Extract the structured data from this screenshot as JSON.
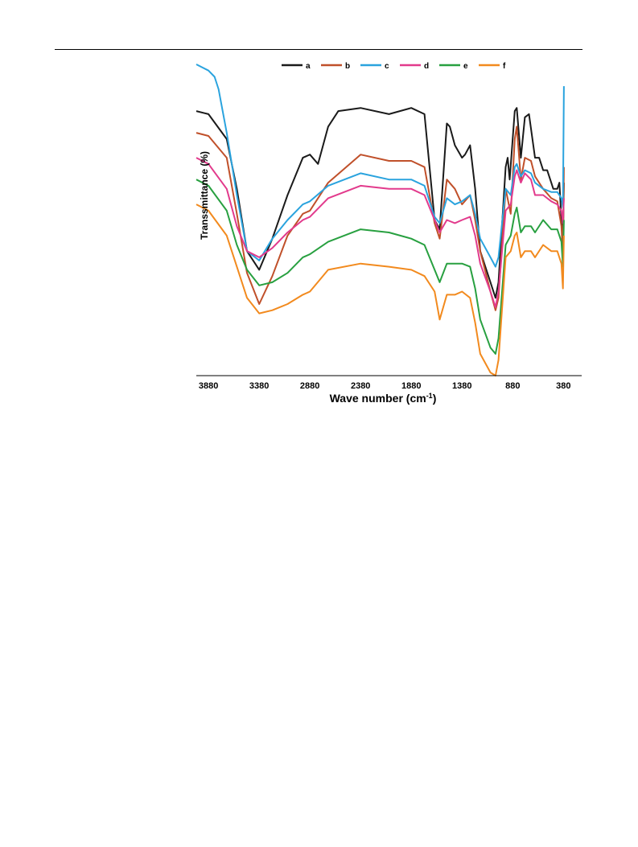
{
  "chart_data": {
    "type": "line",
    "title": "",
    "xlabel": "Wave number (cm⁻¹)",
    "ylabel": "Transsmittance (%)",
    "x_reversed": true,
    "xlim": [
      4000,
      200
    ],
    "ylim": [
      0,
      100
    ],
    "xticks": [
      3880,
      3380,
      2880,
      2380,
      1880,
      1380,
      880,
      380
    ],
    "xtick_labels": [
      "3880",
      "3380",
      "2880",
      "2380",
      "1880",
      "1380",
      "880",
      "380"
    ],
    "grid": false,
    "legend": "top",
    "series": [
      {
        "name": "a",
        "color": "#1a1a1a",
        "points": [
          [
            4000,
            85
          ],
          [
            3880,
            84
          ],
          [
            3700,
            76
          ],
          [
            3600,
            60
          ],
          [
            3500,
            40
          ],
          [
            3380,
            34
          ],
          [
            3250,
            44
          ],
          [
            3100,
            58
          ],
          [
            2950,
            70
          ],
          [
            2880,
            71
          ],
          [
            2800,
            68
          ],
          [
            2700,
            80
          ],
          [
            2600,
            85
          ],
          [
            2380,
            86
          ],
          [
            2100,
            84
          ],
          [
            1880,
            86
          ],
          [
            1750,
            84
          ],
          [
            1650,
            50
          ],
          [
            1600,
            47
          ],
          [
            1530,
            81
          ],
          [
            1500,
            80
          ],
          [
            1450,
            74
          ],
          [
            1380,
            70
          ],
          [
            1350,
            71
          ],
          [
            1300,
            74
          ],
          [
            1250,
            60
          ],
          [
            1200,
            40
          ],
          [
            1100,
            30
          ],
          [
            1050,
            25
          ],
          [
            1020,
            30
          ],
          [
            950,
            67
          ],
          [
            930,
            70
          ],
          [
            910,
            63
          ],
          [
            860,
            85
          ],
          [
            840,
            86
          ],
          [
            800,
            70
          ],
          [
            760,
            83
          ],
          [
            720,
            84
          ],
          [
            660,
            70
          ],
          [
            620,
            70
          ],
          [
            580,
            66
          ],
          [
            540,
            66
          ],
          [
            500,
            62
          ],
          [
            480,
            60
          ],
          [
            440,
            60
          ],
          [
            420,
            62
          ],
          [
            400,
            50
          ],
          [
            385,
            42
          ],
          [
            375,
            62
          ]
        ]
      },
      {
        "name": "b",
        "color": "#c0502a",
        "points": [
          [
            4000,
            78
          ],
          [
            3880,
            77
          ],
          [
            3700,
            70
          ],
          [
            3600,
            52
          ],
          [
            3500,
            33
          ],
          [
            3380,
            23
          ],
          [
            3250,
            32
          ],
          [
            3100,
            45
          ],
          [
            2950,
            52
          ],
          [
            2880,
            53
          ],
          [
            2700,
            62
          ],
          [
            2380,
            71
          ],
          [
            2100,
            69
          ],
          [
            1880,
            69
          ],
          [
            1750,
            67
          ],
          [
            1650,
            49
          ],
          [
            1600,
            44
          ],
          [
            1530,
            63
          ],
          [
            1450,
            60
          ],
          [
            1380,
            55
          ],
          [
            1300,
            58
          ],
          [
            1250,
            50
          ],
          [
            1200,
            40
          ],
          [
            1100,
            27
          ],
          [
            1050,
            21
          ],
          [
            1020,
            25
          ],
          [
            950,
            60
          ],
          [
            900,
            52
          ],
          [
            860,
            76
          ],
          [
            840,
            80
          ],
          [
            800,
            63
          ],
          [
            760,
            70
          ],
          [
            700,
            69
          ],
          [
            660,
            64
          ],
          [
            580,
            60
          ],
          [
            500,
            57
          ],
          [
            440,
            56
          ],
          [
            400,
            48
          ],
          [
            385,
            38
          ],
          [
            375,
            67
          ]
        ]
      },
      {
        "name": "c",
        "color": "#2aa3de",
        "points": [
          [
            4000,
            100
          ],
          [
            3880,
            98
          ],
          [
            3820,
            96
          ],
          [
            3780,
            92
          ],
          [
            3700,
            78
          ],
          [
            3600,
            58
          ],
          [
            3500,
            40
          ],
          [
            3380,
            37
          ],
          [
            3250,
            44
          ],
          [
            3100,
            50
          ],
          [
            2950,
            55
          ],
          [
            2880,
            56
          ],
          [
            2700,
            61
          ],
          [
            2380,
            65
          ],
          [
            2100,
            63
          ],
          [
            1880,
            63
          ],
          [
            1750,
            61
          ],
          [
            1650,
            51
          ],
          [
            1600,
            49
          ],
          [
            1530,
            57
          ],
          [
            1450,
            55
          ],
          [
            1380,
            56
          ],
          [
            1300,
            58
          ],
          [
            1250,
            52
          ],
          [
            1200,
            44
          ],
          [
            1100,
            38
          ],
          [
            1050,
            35
          ],
          [
            1020,
            38
          ],
          [
            950,
            60
          ],
          [
            900,
            58
          ],
          [
            860,
            67
          ],
          [
            840,
            68
          ],
          [
            800,
            64
          ],
          [
            760,
            66
          ],
          [
            700,
            65
          ],
          [
            660,
            62
          ],
          [
            580,
            60
          ],
          [
            500,
            59
          ],
          [
            440,
            59
          ],
          [
            400,
            57
          ],
          [
            385,
            54
          ],
          [
            375,
            93
          ]
        ]
      },
      {
        "name": "d",
        "color": "#e23a8c",
        "points": [
          [
            4000,
            70
          ],
          [
            3880,
            68
          ],
          [
            3700,
            60
          ],
          [
            3600,
            48
          ],
          [
            3500,
            40
          ],
          [
            3380,
            38
          ],
          [
            3250,
            41
          ],
          [
            3100,
            46
          ],
          [
            2950,
            50
          ],
          [
            2880,
            51
          ],
          [
            2700,
            57
          ],
          [
            2380,
            61
          ],
          [
            2100,
            60
          ],
          [
            1880,
            60
          ],
          [
            1750,
            58
          ],
          [
            1650,
            50
          ],
          [
            1600,
            46
          ],
          [
            1530,
            50
          ],
          [
            1450,
            49
          ],
          [
            1380,
            50
          ],
          [
            1300,
            51
          ],
          [
            1250,
            45
          ],
          [
            1200,
            36
          ],
          [
            1100,
            27
          ],
          [
            1050,
            22
          ],
          [
            1020,
            27
          ],
          [
            950,
            53
          ],
          [
            900,
            55
          ],
          [
            860,
            64
          ],
          [
            840,
            66
          ],
          [
            800,
            62
          ],
          [
            760,
            65
          ],
          [
            700,
            63
          ],
          [
            660,
            58
          ],
          [
            580,
            58
          ],
          [
            500,
            56
          ],
          [
            440,
            55
          ],
          [
            400,
            53
          ],
          [
            385,
            49
          ],
          [
            375,
            57
          ]
        ]
      },
      {
        "name": "e",
        "color": "#28a040",
        "points": [
          [
            4000,
            63
          ],
          [
            3880,
            61
          ],
          [
            3700,
            53
          ],
          [
            3600,
            42
          ],
          [
            3500,
            34
          ],
          [
            3380,
            29
          ],
          [
            3250,
            30
          ],
          [
            3100,
            33
          ],
          [
            2950,
            38
          ],
          [
            2880,
            39
          ],
          [
            2700,
            43
          ],
          [
            2380,
            47
          ],
          [
            2100,
            46
          ],
          [
            1880,
            44
          ],
          [
            1750,
            42
          ],
          [
            1650,
            34
          ],
          [
            1600,
            30
          ],
          [
            1530,
            36
          ],
          [
            1450,
            36
          ],
          [
            1380,
            36
          ],
          [
            1300,
            35
          ],
          [
            1250,
            28
          ],
          [
            1200,
            18
          ],
          [
            1100,
            9
          ],
          [
            1050,
            7
          ],
          [
            1020,
            12
          ],
          [
            950,
            42
          ],
          [
            900,
            45
          ],
          [
            860,
            52
          ],
          [
            840,
            54
          ],
          [
            800,
            46
          ],
          [
            760,
            48
          ],
          [
            700,
            48
          ],
          [
            660,
            46
          ],
          [
            580,
            50
          ],
          [
            500,
            47
          ],
          [
            440,
            47
          ],
          [
            400,
            43
          ],
          [
            385,
            35
          ],
          [
            375,
            50
          ]
        ]
      },
      {
        "name": "f",
        "color": "#f28a1e",
        "points": [
          [
            4000,
            55
          ],
          [
            3880,
            53
          ],
          [
            3700,
            45
          ],
          [
            3600,
            35
          ],
          [
            3500,
            25
          ],
          [
            3380,
            20
          ],
          [
            3250,
            21
          ],
          [
            3100,
            23
          ],
          [
            2950,
            26
          ],
          [
            2880,
            27
          ],
          [
            2700,
            34
          ],
          [
            2380,
            36
          ],
          [
            2100,
            35
          ],
          [
            1880,
            34
          ],
          [
            1750,
            32
          ],
          [
            1650,
            27
          ],
          [
            1600,
            18
          ],
          [
            1530,
            26
          ],
          [
            1450,
            26
          ],
          [
            1380,
            27
          ],
          [
            1300,
            25
          ],
          [
            1250,
            17
          ],
          [
            1200,
            7
          ],
          [
            1100,
            1
          ],
          [
            1050,
            0
          ],
          [
            1020,
            5
          ],
          [
            950,
            38
          ],
          [
            900,
            40
          ],
          [
            860,
            45
          ],
          [
            840,
            46
          ],
          [
            800,
            38
          ],
          [
            760,
            40
          ],
          [
            700,
            40
          ],
          [
            660,
            38
          ],
          [
            580,
            42
          ],
          [
            500,
            40
          ],
          [
            440,
            40
          ],
          [
            400,
            36
          ],
          [
            385,
            28
          ],
          [
            375,
            45
          ]
        ]
      }
    ]
  }
}
